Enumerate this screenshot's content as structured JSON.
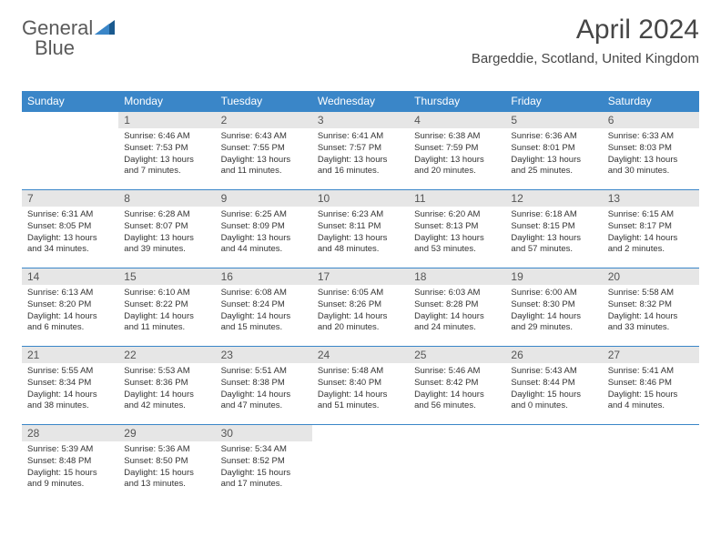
{
  "brand": {
    "word1": "General",
    "word2": "Blue",
    "text_color": "#5a5a5a",
    "tri_dark": "#1b5a8f",
    "tri_light": "#3a86c8"
  },
  "header": {
    "month_title": "April 2024",
    "location": "Bargeddie, Scotland, United Kingdom",
    "title_color": "#464646",
    "title_fontsize": 30,
    "location_fontsize": 15
  },
  "styling": {
    "header_row_bg": "#3a86c8",
    "header_row_text": "#ffffff",
    "daynum_bg": "#e6e6e6",
    "daynum_color": "#555555",
    "cell_border_color": "#3a86c8",
    "body_text_color": "#333333",
    "page_bg": "#ffffff",
    "cell_fontsize": 9.5,
    "header_fontsize": 12,
    "columns": 7,
    "rows": 5
  },
  "weekdays": [
    "Sunday",
    "Monday",
    "Tuesday",
    "Wednesday",
    "Thursday",
    "Friday",
    "Saturday"
  ],
  "weeks": [
    [
      {
        "num": "",
        "sunrise": "",
        "sunset": "",
        "daylight": ""
      },
      {
        "num": "1",
        "sunrise": "Sunrise: 6:46 AM",
        "sunset": "Sunset: 7:53 PM",
        "daylight": "Daylight: 13 hours and 7 minutes."
      },
      {
        "num": "2",
        "sunrise": "Sunrise: 6:43 AM",
        "sunset": "Sunset: 7:55 PM",
        "daylight": "Daylight: 13 hours and 11 minutes."
      },
      {
        "num": "3",
        "sunrise": "Sunrise: 6:41 AM",
        "sunset": "Sunset: 7:57 PM",
        "daylight": "Daylight: 13 hours and 16 minutes."
      },
      {
        "num": "4",
        "sunrise": "Sunrise: 6:38 AM",
        "sunset": "Sunset: 7:59 PM",
        "daylight": "Daylight: 13 hours and 20 minutes."
      },
      {
        "num": "5",
        "sunrise": "Sunrise: 6:36 AM",
        "sunset": "Sunset: 8:01 PM",
        "daylight": "Daylight: 13 hours and 25 minutes."
      },
      {
        "num": "6",
        "sunrise": "Sunrise: 6:33 AM",
        "sunset": "Sunset: 8:03 PM",
        "daylight": "Daylight: 13 hours and 30 minutes."
      }
    ],
    [
      {
        "num": "7",
        "sunrise": "Sunrise: 6:31 AM",
        "sunset": "Sunset: 8:05 PM",
        "daylight": "Daylight: 13 hours and 34 minutes."
      },
      {
        "num": "8",
        "sunrise": "Sunrise: 6:28 AM",
        "sunset": "Sunset: 8:07 PM",
        "daylight": "Daylight: 13 hours and 39 minutes."
      },
      {
        "num": "9",
        "sunrise": "Sunrise: 6:25 AM",
        "sunset": "Sunset: 8:09 PM",
        "daylight": "Daylight: 13 hours and 44 minutes."
      },
      {
        "num": "10",
        "sunrise": "Sunrise: 6:23 AM",
        "sunset": "Sunset: 8:11 PM",
        "daylight": "Daylight: 13 hours and 48 minutes."
      },
      {
        "num": "11",
        "sunrise": "Sunrise: 6:20 AM",
        "sunset": "Sunset: 8:13 PM",
        "daylight": "Daylight: 13 hours and 53 minutes."
      },
      {
        "num": "12",
        "sunrise": "Sunrise: 6:18 AM",
        "sunset": "Sunset: 8:15 PM",
        "daylight": "Daylight: 13 hours and 57 minutes."
      },
      {
        "num": "13",
        "sunrise": "Sunrise: 6:15 AM",
        "sunset": "Sunset: 8:17 PM",
        "daylight": "Daylight: 14 hours and 2 minutes."
      }
    ],
    [
      {
        "num": "14",
        "sunrise": "Sunrise: 6:13 AM",
        "sunset": "Sunset: 8:20 PM",
        "daylight": "Daylight: 14 hours and 6 minutes."
      },
      {
        "num": "15",
        "sunrise": "Sunrise: 6:10 AM",
        "sunset": "Sunset: 8:22 PM",
        "daylight": "Daylight: 14 hours and 11 minutes."
      },
      {
        "num": "16",
        "sunrise": "Sunrise: 6:08 AM",
        "sunset": "Sunset: 8:24 PM",
        "daylight": "Daylight: 14 hours and 15 minutes."
      },
      {
        "num": "17",
        "sunrise": "Sunrise: 6:05 AM",
        "sunset": "Sunset: 8:26 PM",
        "daylight": "Daylight: 14 hours and 20 minutes."
      },
      {
        "num": "18",
        "sunrise": "Sunrise: 6:03 AM",
        "sunset": "Sunset: 8:28 PM",
        "daylight": "Daylight: 14 hours and 24 minutes."
      },
      {
        "num": "19",
        "sunrise": "Sunrise: 6:00 AM",
        "sunset": "Sunset: 8:30 PM",
        "daylight": "Daylight: 14 hours and 29 minutes."
      },
      {
        "num": "20",
        "sunrise": "Sunrise: 5:58 AM",
        "sunset": "Sunset: 8:32 PM",
        "daylight": "Daylight: 14 hours and 33 minutes."
      }
    ],
    [
      {
        "num": "21",
        "sunrise": "Sunrise: 5:55 AM",
        "sunset": "Sunset: 8:34 PM",
        "daylight": "Daylight: 14 hours and 38 minutes."
      },
      {
        "num": "22",
        "sunrise": "Sunrise: 5:53 AM",
        "sunset": "Sunset: 8:36 PM",
        "daylight": "Daylight: 14 hours and 42 minutes."
      },
      {
        "num": "23",
        "sunrise": "Sunrise: 5:51 AM",
        "sunset": "Sunset: 8:38 PM",
        "daylight": "Daylight: 14 hours and 47 minutes."
      },
      {
        "num": "24",
        "sunrise": "Sunrise: 5:48 AM",
        "sunset": "Sunset: 8:40 PM",
        "daylight": "Daylight: 14 hours and 51 minutes."
      },
      {
        "num": "25",
        "sunrise": "Sunrise: 5:46 AM",
        "sunset": "Sunset: 8:42 PM",
        "daylight": "Daylight: 14 hours and 56 minutes."
      },
      {
        "num": "26",
        "sunrise": "Sunrise: 5:43 AM",
        "sunset": "Sunset: 8:44 PM",
        "daylight": "Daylight: 15 hours and 0 minutes."
      },
      {
        "num": "27",
        "sunrise": "Sunrise: 5:41 AM",
        "sunset": "Sunset: 8:46 PM",
        "daylight": "Daylight: 15 hours and 4 minutes."
      }
    ],
    [
      {
        "num": "28",
        "sunrise": "Sunrise: 5:39 AM",
        "sunset": "Sunset: 8:48 PM",
        "daylight": "Daylight: 15 hours and 9 minutes."
      },
      {
        "num": "29",
        "sunrise": "Sunrise: 5:36 AM",
        "sunset": "Sunset: 8:50 PM",
        "daylight": "Daylight: 15 hours and 13 minutes."
      },
      {
        "num": "30",
        "sunrise": "Sunrise: 5:34 AM",
        "sunset": "Sunset: 8:52 PM",
        "daylight": "Daylight: 15 hours and 17 minutes."
      },
      {
        "num": "",
        "sunrise": "",
        "sunset": "",
        "daylight": ""
      },
      {
        "num": "",
        "sunrise": "",
        "sunset": "",
        "daylight": ""
      },
      {
        "num": "",
        "sunrise": "",
        "sunset": "",
        "daylight": ""
      },
      {
        "num": "",
        "sunrise": "",
        "sunset": "",
        "daylight": ""
      }
    ]
  ]
}
